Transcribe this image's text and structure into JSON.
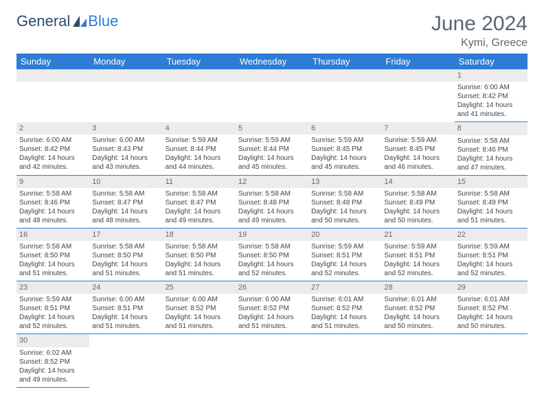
{
  "brand": {
    "part1": "General",
    "part2": "Blue"
  },
  "title": "June 2024",
  "location": "Kymi, Greece",
  "colors": {
    "header_bg": "#2e7cd6",
    "header_text": "#ffffff",
    "daynum_bg": "#ececec",
    "cell_border": "#2e7cd6",
    "title_color": "#5a6570",
    "body_text": "#444444"
  },
  "weekdays": [
    "Sunday",
    "Monday",
    "Tuesday",
    "Wednesday",
    "Thursday",
    "Friday",
    "Saturday"
  ],
  "weeks": [
    [
      null,
      null,
      null,
      null,
      null,
      null,
      {
        "n": "1",
        "sr": "Sunrise: 6:00 AM",
        "ss": "Sunset: 8:42 PM",
        "d1": "Daylight: 14 hours",
        "d2": "and 41 minutes."
      }
    ],
    [
      {
        "n": "2",
        "sr": "Sunrise: 6:00 AM",
        "ss": "Sunset: 8:42 PM",
        "d1": "Daylight: 14 hours",
        "d2": "and 42 minutes."
      },
      {
        "n": "3",
        "sr": "Sunrise: 6:00 AM",
        "ss": "Sunset: 8:43 PM",
        "d1": "Daylight: 14 hours",
        "d2": "and 43 minutes."
      },
      {
        "n": "4",
        "sr": "Sunrise: 5:59 AM",
        "ss": "Sunset: 8:44 PM",
        "d1": "Daylight: 14 hours",
        "d2": "and 44 minutes."
      },
      {
        "n": "5",
        "sr": "Sunrise: 5:59 AM",
        "ss": "Sunset: 8:44 PM",
        "d1": "Daylight: 14 hours",
        "d2": "and 45 minutes."
      },
      {
        "n": "6",
        "sr": "Sunrise: 5:59 AM",
        "ss": "Sunset: 8:45 PM",
        "d1": "Daylight: 14 hours",
        "d2": "and 45 minutes."
      },
      {
        "n": "7",
        "sr": "Sunrise: 5:59 AM",
        "ss": "Sunset: 8:45 PM",
        "d1": "Daylight: 14 hours",
        "d2": "and 46 minutes."
      },
      {
        "n": "8",
        "sr": "Sunrise: 5:58 AM",
        "ss": "Sunset: 8:46 PM",
        "d1": "Daylight: 14 hours",
        "d2": "and 47 minutes."
      }
    ],
    [
      {
        "n": "9",
        "sr": "Sunrise: 5:58 AM",
        "ss": "Sunset: 8:46 PM",
        "d1": "Daylight: 14 hours",
        "d2": "and 48 minutes."
      },
      {
        "n": "10",
        "sr": "Sunrise: 5:58 AM",
        "ss": "Sunset: 8:47 PM",
        "d1": "Daylight: 14 hours",
        "d2": "and 48 minutes."
      },
      {
        "n": "11",
        "sr": "Sunrise: 5:58 AM",
        "ss": "Sunset: 8:47 PM",
        "d1": "Daylight: 14 hours",
        "d2": "and 49 minutes."
      },
      {
        "n": "12",
        "sr": "Sunrise: 5:58 AM",
        "ss": "Sunset: 8:48 PM",
        "d1": "Daylight: 14 hours",
        "d2": "and 49 minutes."
      },
      {
        "n": "13",
        "sr": "Sunrise: 5:58 AM",
        "ss": "Sunset: 8:48 PM",
        "d1": "Daylight: 14 hours",
        "d2": "and 50 minutes."
      },
      {
        "n": "14",
        "sr": "Sunrise: 5:58 AM",
        "ss": "Sunset: 8:49 PM",
        "d1": "Daylight: 14 hours",
        "d2": "and 50 minutes."
      },
      {
        "n": "15",
        "sr": "Sunrise: 5:58 AM",
        "ss": "Sunset: 8:49 PM",
        "d1": "Daylight: 14 hours",
        "d2": "and 51 minutes."
      }
    ],
    [
      {
        "n": "16",
        "sr": "Sunrise: 5:58 AM",
        "ss": "Sunset: 8:50 PM",
        "d1": "Daylight: 14 hours",
        "d2": "and 51 minutes."
      },
      {
        "n": "17",
        "sr": "Sunrise: 5:58 AM",
        "ss": "Sunset: 8:50 PM",
        "d1": "Daylight: 14 hours",
        "d2": "and 51 minutes."
      },
      {
        "n": "18",
        "sr": "Sunrise: 5:58 AM",
        "ss": "Sunset: 8:50 PM",
        "d1": "Daylight: 14 hours",
        "d2": "and 51 minutes."
      },
      {
        "n": "19",
        "sr": "Sunrise: 5:58 AM",
        "ss": "Sunset: 8:50 PM",
        "d1": "Daylight: 14 hours",
        "d2": "and 52 minutes."
      },
      {
        "n": "20",
        "sr": "Sunrise: 5:59 AM",
        "ss": "Sunset: 8:51 PM",
        "d1": "Daylight: 14 hours",
        "d2": "and 52 minutes."
      },
      {
        "n": "21",
        "sr": "Sunrise: 5:59 AM",
        "ss": "Sunset: 8:51 PM",
        "d1": "Daylight: 14 hours",
        "d2": "and 52 minutes."
      },
      {
        "n": "22",
        "sr": "Sunrise: 5:59 AM",
        "ss": "Sunset: 8:51 PM",
        "d1": "Daylight: 14 hours",
        "d2": "and 52 minutes."
      }
    ],
    [
      {
        "n": "23",
        "sr": "Sunrise: 5:59 AM",
        "ss": "Sunset: 8:51 PM",
        "d1": "Daylight: 14 hours",
        "d2": "and 52 minutes."
      },
      {
        "n": "24",
        "sr": "Sunrise: 6:00 AM",
        "ss": "Sunset: 8:51 PM",
        "d1": "Daylight: 14 hours",
        "d2": "and 51 minutes."
      },
      {
        "n": "25",
        "sr": "Sunrise: 6:00 AM",
        "ss": "Sunset: 8:52 PM",
        "d1": "Daylight: 14 hours",
        "d2": "and 51 minutes."
      },
      {
        "n": "26",
        "sr": "Sunrise: 6:00 AM",
        "ss": "Sunset: 8:52 PM",
        "d1": "Daylight: 14 hours",
        "d2": "and 51 minutes."
      },
      {
        "n": "27",
        "sr": "Sunrise: 6:01 AM",
        "ss": "Sunset: 8:52 PM",
        "d1": "Daylight: 14 hours",
        "d2": "and 51 minutes."
      },
      {
        "n": "28",
        "sr": "Sunrise: 6:01 AM",
        "ss": "Sunset: 8:52 PM",
        "d1": "Daylight: 14 hours",
        "d2": "and 50 minutes."
      },
      {
        "n": "29",
        "sr": "Sunrise: 6:01 AM",
        "ss": "Sunset: 8:52 PM",
        "d1": "Daylight: 14 hours",
        "d2": "and 50 minutes."
      }
    ],
    [
      {
        "n": "30",
        "sr": "Sunrise: 6:02 AM",
        "ss": "Sunset: 8:52 PM",
        "d1": "Daylight: 14 hours",
        "d2": "and 49 minutes."
      },
      null,
      null,
      null,
      null,
      null,
      null
    ]
  ]
}
